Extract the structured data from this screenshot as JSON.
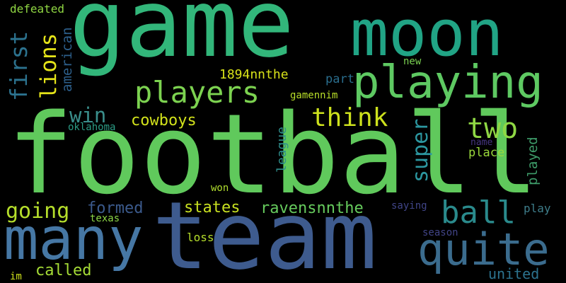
{
  "words": [
    {
      "text": "football",
      "color": "#60c95c"
    },
    {
      "text": "game",
      "color": "#32b67a"
    },
    {
      "text": "team",
      "color": "#3e5b8e"
    },
    {
      "text": "moon",
      "color": "#21a485"
    },
    {
      "text": "playing",
      "color": "#5ec962"
    },
    {
      "text": "quite",
      "color": "#3b6c8e"
    },
    {
      "text": "many",
      "color": "#4677a4"
    },
    {
      "text": "players",
      "color": "#7cd250"
    },
    {
      "text": "ball",
      "color": "#2a8a8c"
    },
    {
      "text": "going",
      "color": "#b5de2b"
    },
    {
      "text": "think",
      "color": "#cde11d"
    },
    {
      "text": "two",
      "color": "#8fd744"
    },
    {
      "text": "first",
      "color": "#2c728e"
    },
    {
      "text": "lions",
      "color": "#e5e419"
    },
    {
      "text": "win",
      "color": "#3a8e8b"
    },
    {
      "text": "super",
      "color": "#2c97a0"
    },
    {
      "text": "cowboys",
      "color": "#d2e21b"
    },
    {
      "text": "formed",
      "color": "#3b5a8c"
    },
    {
      "text": "states",
      "color": "#c8e020"
    },
    {
      "text": "ravensnnthe",
      "color": "#66cb5d"
    },
    {
      "text": "american",
      "color": "#2d5f8b"
    },
    {
      "text": "1894nnthe",
      "color": "#d8e219"
    },
    {
      "text": "defeated",
      "color": "#90d743"
    },
    {
      "text": "part",
      "color": "#2a6e8e"
    },
    {
      "text": "new",
      "color": "#7ad151"
    },
    {
      "text": "gamennim",
      "color": "#b8de29"
    },
    {
      "text": "league",
      "color": "#2f8f8d"
    },
    {
      "text": "oklahoma",
      "color": "#2b9c85"
    },
    {
      "text": "place",
      "color": "#9bd93c"
    },
    {
      "text": "name",
      "color": "#453581"
    },
    {
      "text": "played",
      "color": "#3e9d6a"
    },
    {
      "text": "won",
      "color": "#b0dd2f"
    },
    {
      "text": "saying",
      "color": "#404588"
    },
    {
      "text": "play",
      "color": "#3e7d8a"
    },
    {
      "text": "texas",
      "color": "#8cd646"
    },
    {
      "text": "loss",
      "color": "#b5de2b"
    },
    {
      "text": "season",
      "color": "#414487"
    },
    {
      "text": "called",
      "color": "#a5db36"
    },
    {
      "text": "united",
      "color": "#2c728e"
    },
    {
      "text": "im",
      "color": "#cfe11c"
    }
  ]
}
